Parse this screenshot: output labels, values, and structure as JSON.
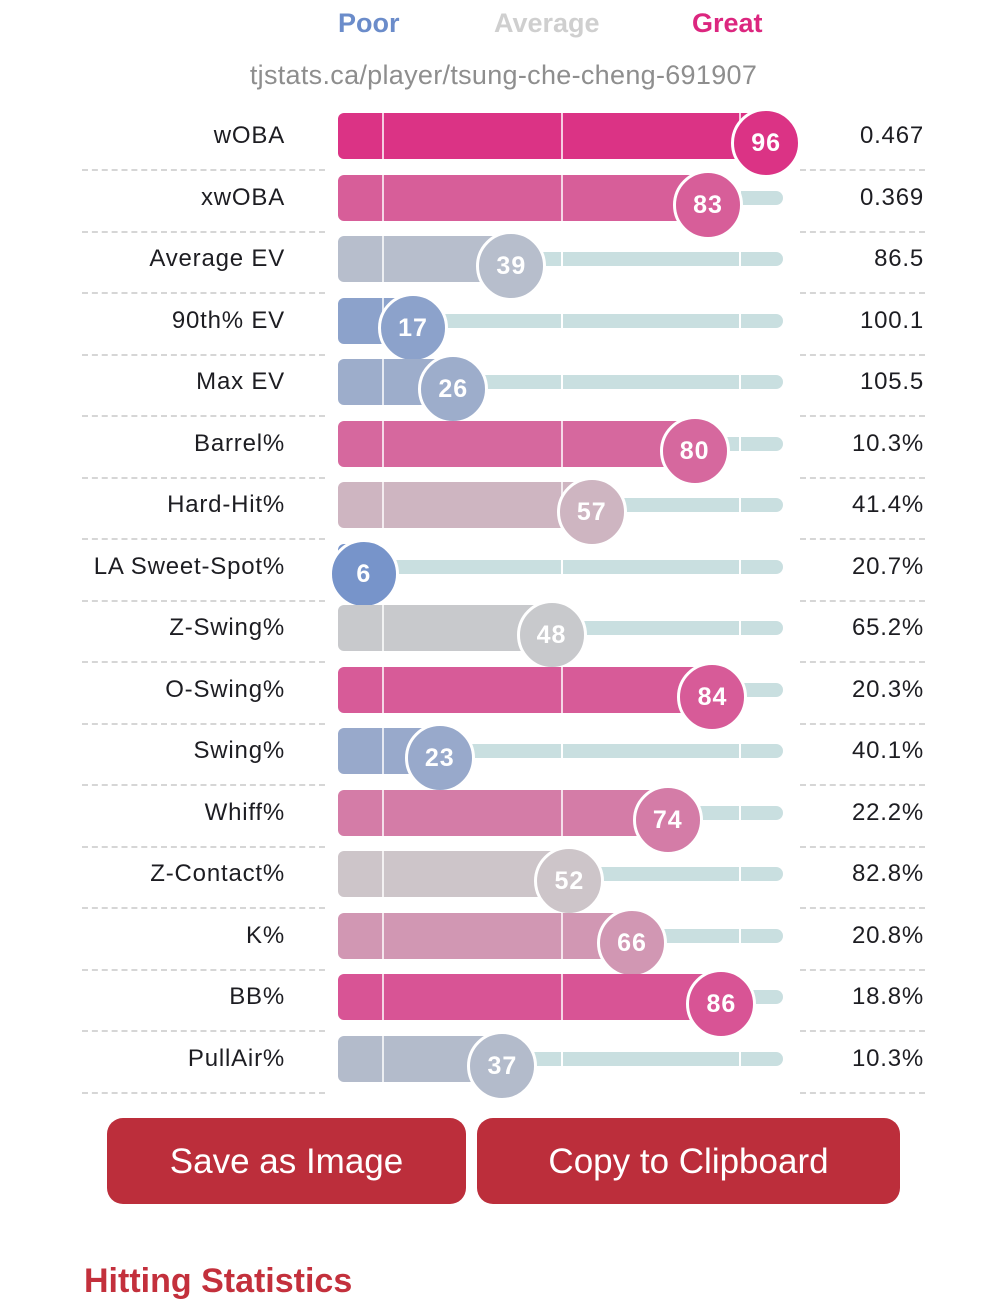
{
  "legend": {
    "poor": "Poor",
    "average": "Average",
    "great": "Great"
  },
  "colors": {
    "poor": "#6b8cca",
    "average": "#cccccc",
    "great": "#dc267f",
    "track": "#c9dfe0",
    "button": "#bc2e3b"
  },
  "url": "tjstats.ca/player/tsung-che-cheng-691907",
  "chart_data": {
    "type": "bar",
    "orientation": "horizontal",
    "xlim": [
      0,
      100
    ],
    "categories": [
      "wOBA",
      "xwOBA",
      "Average EV",
      "90th% EV",
      "Max EV",
      "Barrel%",
      "Hard-Hit%",
      "LA Sweet-Spot%",
      "Z-Swing%",
      "O-Swing%",
      "Swing%",
      "Whiff%",
      "Z-Contact%",
      "K%",
      "BB%",
      "PullAir%"
    ],
    "percentiles": [
      96,
      83,
      39,
      17,
      26,
      80,
      57,
      6,
      48,
      84,
      23,
      74,
      52,
      66,
      86,
      37
    ],
    "stat_values": [
      "0.467",
      "0.369",
      "86.5",
      "100.1",
      "105.5",
      "10.3%",
      "41.4%",
      "20.7%",
      "65.2%",
      "20.3%",
      "40.1%",
      "22.2%",
      "82.8%",
      "20.8%",
      "18.8%",
      "10.3%"
    ]
  },
  "buttons": {
    "save": "Save as Image",
    "copy": "Copy to Clipboard"
  },
  "section_heading": "Hitting Statistics"
}
